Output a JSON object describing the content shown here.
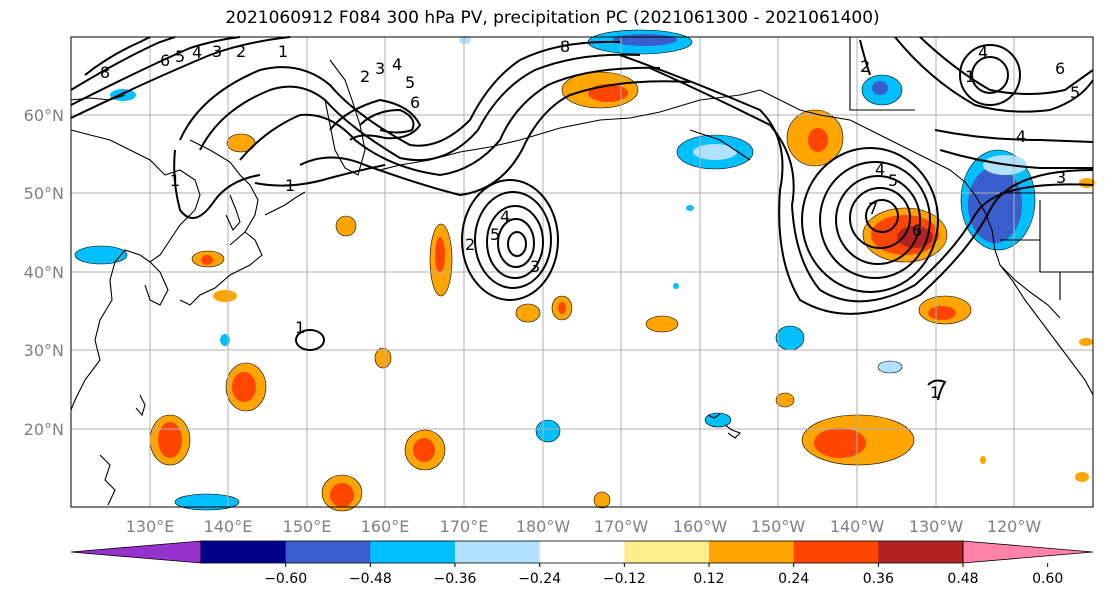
{
  "title": "2021060912 F084 300 hPa PV, precipitation PC (2021061300 - 2021061400)",
  "lat_labels": [
    "60°N",
    "50°N",
    "40°N",
    "30°N",
    "20°N"
  ],
  "lon_labels": [
    "130°E",
    "140°E",
    "150°E",
    "160°E",
    "170°E",
    "180°W",
    "170°W",
    "160°W",
    "150°W",
    "140°W",
    "130°W",
    "120°W"
  ],
  "colorbar": {
    "ticks": [
      "−0.60",
      "−0.48",
      "−0.36",
      "−0.24",
      "−0.12",
      "0.12",
      "0.24",
      "0.36",
      "0.48",
      "0.60"
    ],
    "colors": [
      "#9932CC",
      "#00008B",
      "#3A5FCD",
      "#00BFFF",
      "#B0E2FF",
      "#FFFFFF",
      "#FFEC8B",
      "#FFA500",
      "#FF4500",
      "#B22222",
      "#FF82AB"
    ]
  },
  "contour_labels": [
    "1",
    "2",
    "3",
    "4",
    "5",
    "6",
    "8",
    "1",
    "2",
    "3",
    "4",
    "5",
    "6",
    "8",
    "1",
    "4",
    "5",
    "7",
    "6",
    "4",
    "5",
    "3",
    "1",
    "2",
    "5",
    "4",
    "1",
    "2",
    "6",
    "5",
    "4",
    "3",
    "2",
    "1"
  ]
}
